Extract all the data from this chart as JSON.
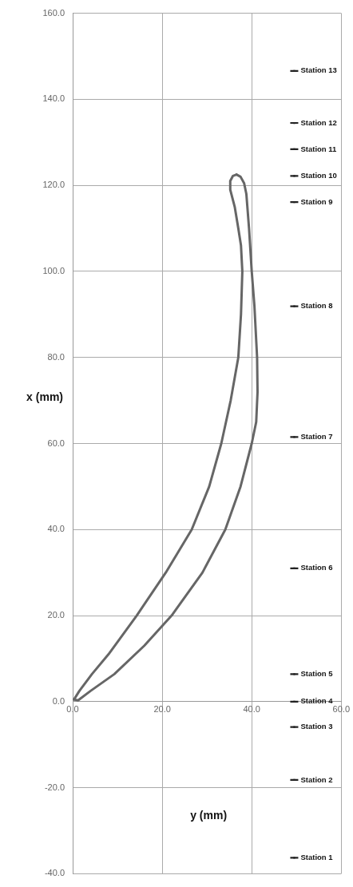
{
  "chart_data": {
    "type": "line",
    "xlabel": "y (mm)",
    "ylabel": "x (mm)",
    "xlim": [
      0,
      60
    ],
    "ylim": [
      -40,
      160
    ],
    "xticks": [
      {
        "value": 0,
        "label": "0.0"
      },
      {
        "value": 20,
        "label": "20.0"
      },
      {
        "value": 40,
        "label": "40.0"
      },
      {
        "value": 60,
        "label": "60.0"
      }
    ],
    "yticks": [
      {
        "value": -40,
        "label": "-40.0"
      },
      {
        "value": -20,
        "label": "-20.0"
      },
      {
        "value": 0,
        "label": "0.0"
      },
      {
        "value": 20,
        "label": "20.0"
      },
      {
        "value": 40,
        "label": "40.0"
      },
      {
        "value": 60,
        "label": "60.0"
      },
      {
        "value": 80,
        "label": "80.0"
      },
      {
        "value": 100,
        "label": "100.0"
      },
      {
        "value": 120,
        "label": "120.0"
      },
      {
        "value": 140,
        "label": "140.0"
      },
      {
        "value": 160,
        "label": "160.0"
      }
    ],
    "grid": true,
    "legend": false,
    "marker": "none",
    "line_style": "solid",
    "series": [
      {
        "color": "#666666",
        "x": [
          0.3,
          1.5,
          4.3,
          8,
          14.3,
          20.8,
          26.6,
          30.5,
          33.2,
          35.3,
          37,
          37.6,
          37.9,
          37.6,
          37,
          36.2,
          35.2,
          35.2,
          35.8,
          36.6
        ],
        "values": [
          0.5,
          2.5,
          6.4,
          11,
          20,
          30,
          40,
          50,
          60,
          70,
          80,
          90,
          100,
          106,
          110,
          115,
          119,
          121,
          122.2,
          122.5
        ]
      },
      {
        "color": "#666666",
        "x": [
          36.6,
          37.5,
          38.3,
          38.8,
          39.4,
          40,
          40.6,
          41.2,
          41.3,
          41,
          40,
          37.5,
          34.1,
          29,
          22.1,
          16,
          9.3,
          4,
          1.2,
          0.3
        ],
        "values": [
          122.5,
          122,
          120.5,
          118,
          110,
          100,
          92,
          80,
          72,
          65,
          60,
          50,
          40,
          30,
          20,
          13,
          6.4,
          2.5,
          0.3,
          0.5
        ]
      },
      {
        "type": "scatter",
        "marker": "square",
        "color": "#222222",
        "x": [
          49.5,
          49.5,
          49.5,
          49.5,
          49.5,
          49.5,
          49.5,
          49.5,
          49.5,
          49.5,
          49.5,
          49.5,
          49.5
        ],
        "values": [
          146.6,
          134.5,
          128.4,
          122.2,
          116.1,
          91.9,
          61.5,
          31,
          6.4,
          0,
          -5.9,
          -18.2,
          -36.3
        ],
        "value_labels": [
          "Station 13",
          "Station 12",
          "Station 11",
          "Station 10",
          "Station 9",
          "Station 8",
          "Station 7",
          "Station 6",
          "Station 5",
          "Station 4",
          "Station 3",
          "Station 2",
          "Station 1"
        ]
      }
    ]
  }
}
